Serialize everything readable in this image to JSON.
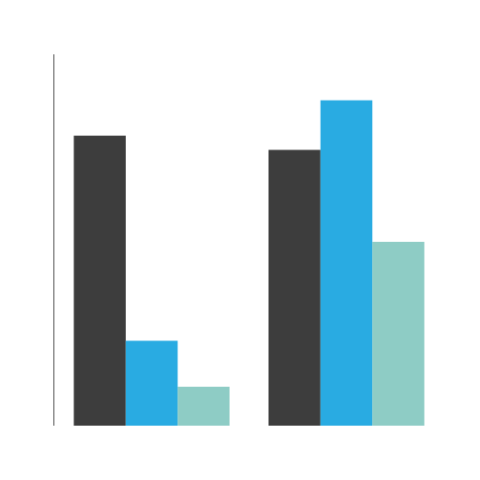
{
  "chart_data": {
    "type": "bar",
    "categories": [
      null,
      null
    ],
    "series": [
      {
        "color": "#3d3d3d",
        "values": [
          82,
          78
        ]
      },
      {
        "color": "#29abe2",
        "values": [
          24,
          92
        ]
      },
      {
        "color": "#8eccc5",
        "values": [
          11,
          52
        ]
      }
    ],
    "ylim": [
      0,
      105
    ],
    "grid": false,
    "tick_labels": false
  }
}
